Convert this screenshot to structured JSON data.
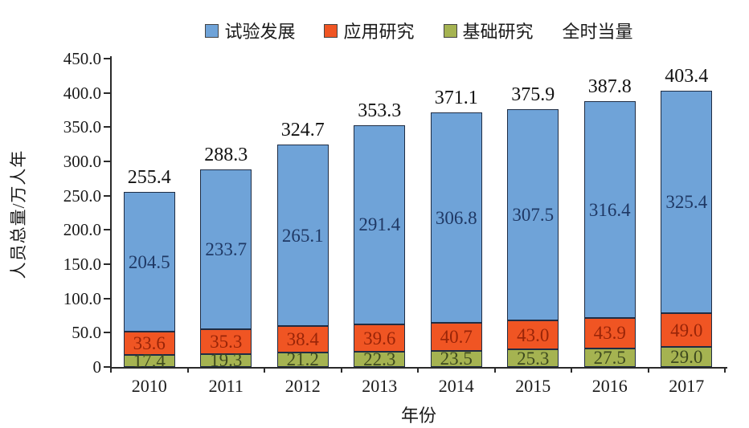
{
  "chart_data": {
    "type": "bar",
    "stacked": true,
    "title": "",
    "xlabel": "年份",
    "ylabel": "人员总量/万人年",
    "ylim": [
      0,
      450
    ],
    "ytick_step": 50,
    "ytick_labels": [
      "0",
      "50.0",
      "100.0",
      "150.0",
      "200.0",
      "250.0",
      "300.0",
      "350.0",
      "400.0",
      "450.0"
    ],
    "grid": false,
    "legend_position": "top",
    "categories": [
      "2010",
      "2011",
      "2012",
      "2013",
      "2014",
      "2015",
      "2016",
      "2017"
    ],
    "series": [
      {
        "name": "基础研究",
        "key": "basic-research",
        "color": "#a5b351",
        "label_color": "#3e4a1f",
        "values": [
          17.4,
          19.3,
          21.2,
          22.3,
          23.5,
          25.3,
          27.5,
          29.0
        ]
      },
      {
        "name": "应用研究",
        "key": "applied-research",
        "color": "#f05523",
        "label_color": "#992508",
        "values": [
          33.6,
          35.3,
          38.4,
          39.6,
          40.7,
          43.0,
          43.9,
          49.0
        ]
      },
      {
        "name": "试验发展",
        "key": "experimental-development",
        "color": "#6fa3d8",
        "label_color": "#1f3864",
        "values": [
          204.5,
          233.7,
          265.1,
          291.4,
          306.8,
          307.5,
          316.4,
          325.4
        ]
      }
    ],
    "totals": [
      255.4,
      288.3,
      324.7,
      353.3,
      371.1,
      375.9,
      387.8,
      403.4
    ],
    "legend": [
      {
        "label": "试验发展",
        "color": "#6fa3d8",
        "swatch": true
      },
      {
        "label": "应用研究",
        "color": "#f05523",
        "swatch": true
      },
      {
        "label": "基础研究",
        "color": "#a5b351",
        "swatch": true
      },
      {
        "label": "全时当量",
        "color": "",
        "swatch": false
      }
    ]
  }
}
